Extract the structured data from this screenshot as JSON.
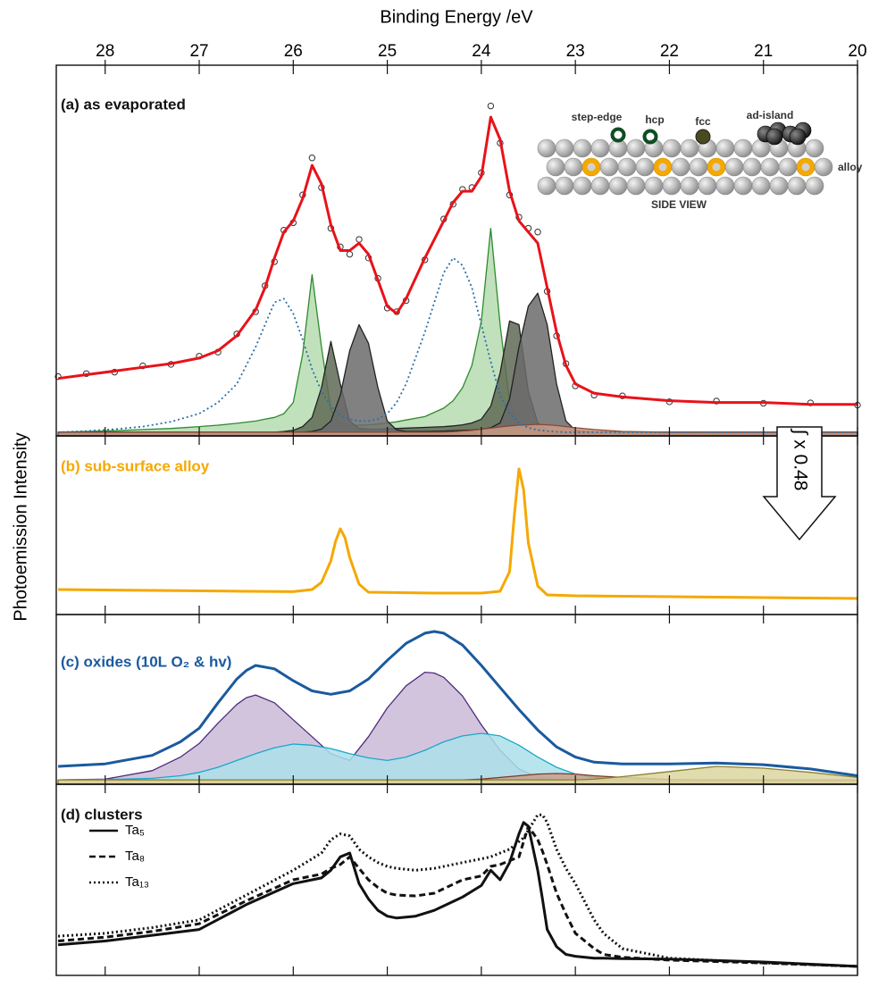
{
  "chart_data": [
    {
      "type": "line",
      "xlabel": "Binding Energy /eV",
      "ylabel": "Photoemission Intensity",
      "label": "(a) as evaporated",
      "label_color": "#111111",
      "xlim": [
        28.52,
        20.0
      ],
      "ylim": [
        0,
        100
      ],
      "xticks": [
        28,
        27,
        26,
        25,
        24,
        23,
        22,
        21,
        20
      ],
      "inset_labels": [
        "step-edge",
        "hcp",
        "fcc",
        "ad-island",
        "alloy",
        "SIDE VIEW"
      ],
      "annotation": "∫ x 0.48",
      "x": [
        28.5,
        28.2,
        27.9,
        27.6,
        27.3,
        27.0,
        26.8,
        26.6,
        26.4,
        26.3,
        26.2,
        26.1,
        26.0,
        25.9,
        25.8,
        25.7,
        25.6,
        25.5,
        25.4,
        25.3,
        25.2,
        25.1,
        25.0,
        24.9,
        24.8,
        24.6,
        24.4,
        24.3,
        24.2,
        24.1,
        24.0,
        23.9,
        23.8,
        23.7,
        23.6,
        23.5,
        23.4,
        23.3,
        23.2,
        23.1,
        23.0,
        22.8,
        22.5,
        22.0,
        21.5,
        21.0,
        20.5,
        20.0
      ],
      "series": [
        {
          "color": "#2e8b2e",
          "fill": "#b5dcb0",
          "values": [
            1,
            1.2,
            1.4,
            1.7,
            2,
            2.5,
            2.9,
            3.4,
            4,
            4.5,
            5,
            6,
            9,
            22,
            43.5,
            24,
            7,
            3.2,
            2.8,
            2.9,
            3,
            3.2,
            3.5,
            3.8,
            4.3,
            5.2,
            7.5,
            9.5,
            13,
            19,
            31,
            56,
            30,
            9,
            3,
            1.6,
            1.2,
            1,
            1,
            1,
            1,
            1,
            1,
            1,
            1,
            1,
            1,
            1
          ]
        },
        {
          "color": "#222222",
          "fill": "#5f6a55",
          "values": [
            1,
            1,
            1,
            1,
            1,
            1,
            1,
            1,
            1,
            1,
            1,
            1.2,
            1.5,
            2.5,
            5,
            13,
            25.5,
            14,
            4,
            2,
            1.8,
            1.8,
            1.9,
            2,
            2.1,
            2.3,
            2.5,
            2.7,
            3,
            3.5,
            4.5,
            8,
            17,
            31,
            30,
            12,
            3.5,
            1.6,
            1.2,
            1,
            1,
            1,
            1,
            1,
            1,
            1,
            1,
            1
          ]
        },
        {
          "color": "#222222",
          "fill": "#6b6b6b",
          "values": [
            1,
            1,
            1,
            1,
            1,
            1,
            1,
            1,
            1,
            1,
            1,
            1,
            1,
            1,
            1.2,
            1.8,
            4,
            11,
            23,
            30,
            25,
            13,
            4,
            1.6,
            1.2,
            1.2,
            1.3,
            1.4,
            1.5,
            1.6,
            1.8,
            2.2,
            3.5,
            10,
            24,
            35,
            38.5,
            30,
            14,
            4,
            1.5,
            1.1,
            1,
            1,
            1,
            1,
            1,
            1
          ]
        },
        {
          "color": "#8a4a36",
          "fill": "#c99a85",
          "values": [
            1,
            1,
            1,
            1,
            1,
            1,
            1,
            1,
            1,
            1,
            1,
            1,
            1,
            1,
            1,
            1,
            1,
            1,
            1,
            1,
            1,
            1,
            1,
            1,
            1,
            1,
            1,
            1.1,
            1.3,
            1.5,
            1.8,
            2.1,
            2.4,
            2.7,
            2.9,
            3,
            3.1,
            3,
            2.8,
            2.5,
            2.2,
            1.7,
            1.2,
            1,
            1,
            1,
            1,
            1
          ]
        },
        {
          "color": "#2a6fa8",
          "dash": "dotted",
          "values": [
            1,
            1.3,
            1.8,
            2.5,
            3.8,
            6,
            9,
            14,
            24,
            30,
            36,
            37,
            33,
            26,
            18,
            12,
            8,
            5.5,
            4.5,
            4,
            4,
            4.5,
            6,
            9,
            14,
            28,
            44,
            48,
            46,
            40,
            30,
            20,
            11,
            6,
            3.5,
            2.2,
            1.6,
            1.3,
            1.1,
            1,
            1,
            1,
            1,
            1,
            1,
            1,
            1,
            1
          ]
        },
        {
          "color": "#333333",
          "marker": "circle",
          "values": [
            16,
            16.8,
            17.2,
            18.9,
            19.3,
            21.5,
            22.6,
            27.5,
            33.5,
            40.5,
            47,
            55.5,
            57.5,
            65,
            75,
            67,
            56,
            51,
            49,
            53,
            48,
            42.5,
            34.5,
            33.5,
            36.5,
            47.5,
            58.5,
            62.5,
            66.5,
            67,
            71,
            89,
            79,
            65,
            59,
            56,
            55,
            39,
            27,
            19.5,
            13.5,
            11,
            10.8,
            9.2,
            9.4,
            8.8,
            8.9,
            8.3
          ]
        },
        {
          "color": "#e8121a",
          "values": [
            15.5,
            16.5,
            17.5,
            18.5,
            19.5,
            21,
            23,
            27,
            34,
            40,
            48,
            55,
            58,
            64,
            73,
            68,
            57,
            50,
            50,
            52,
            49,
            42,
            35,
            33,
            37,
            48,
            58,
            63,
            66,
            66,
            70,
            86,
            80,
            66,
            58,
            55,
            52,
            40,
            28,
            19,
            14,
            11.5,
            10.5,
            9.5,
            9,
            9,
            8.5,
            8.5
          ]
        }
      ]
    },
    {
      "type": "line",
      "label": "(b) sub-surface alloy",
      "label_color": "#f5a800",
      "xlim": [
        28.52,
        20.0
      ],
      "ylim": [
        0,
        100
      ],
      "x": [
        28.5,
        27.5,
        26.5,
        26.0,
        25.8,
        25.7,
        25.6,
        25.55,
        25.5,
        25.45,
        25.4,
        25.3,
        25.2,
        24.5,
        24.0,
        23.8,
        23.7,
        23.65,
        23.6,
        23.55,
        23.5,
        23.4,
        23.3,
        23.0,
        22.0,
        21.0,
        20.0
      ],
      "series": [
        {
          "color": "#f5a800",
          "values": [
            14,
            13.5,
            13,
            12.8,
            14,
            18,
            30,
            41,
            48,
            43,
            32,
            17,
            12.5,
            12,
            12,
            13,
            24,
            55,
            81.5,
            70,
            40,
            16,
            11,
            10.5,
            10,
            9.5,
            9
          ]
        }
      ]
    },
    {
      "type": "line",
      "label": "(c) oxides (10L O₂ & hv)",
      "label_color": "#1a5a9e",
      "xlim": [
        28.52,
        20.0
      ],
      "ylim": [
        0,
        100
      ],
      "x": [
        28.5,
        28.0,
        27.5,
        27.2,
        27.0,
        26.8,
        26.6,
        26.5,
        26.4,
        26.2,
        26.0,
        25.8,
        25.6,
        25.4,
        25.2,
        25.0,
        24.8,
        24.6,
        24.5,
        24.4,
        24.2,
        24.0,
        23.8,
        23.6,
        23.4,
        23.2,
        23.0,
        22.8,
        22.5,
        22.0,
        21.5,
        21.0,
        20.5,
        20.0
      ],
      "series": [
        {
          "color": "#4b2a7a",
          "fill": "#cbbad8",
          "values": [
            2.6,
            3,
            8,
            16,
            24,
            36,
            47,
            51,
            52.6,
            48,
            38,
            28,
            18,
            14,
            28,
            45,
            58,
            66,
            65.5,
            63,
            52,
            35,
            20,
            9,
            4,
            2.6,
            2.6,
            2.6,
            2.6,
            2.6,
            2.6,
            2.6,
            2.6,
            2.6
          ]
        },
        {
          "color": "#1aa8c8",
          "fill": "#ace0ea",
          "values": [
            2.6,
            2.8,
            3.5,
            5,
            7,
            10,
            14,
            16,
            18,
            21.5,
            23.7,
            23,
            21,
            18,
            15.5,
            14,
            16,
            20,
            22.5,
            25,
            28.5,
            30,
            28.5,
            23,
            16,
            10,
            6,
            4,
            2.6,
            2.2,
            2,
            2,
            2,
            2
          ]
        },
        {
          "color": "#7a3a2a",
          "fill": "#c8a08a",
          "values": [
            2.6,
            2.6,
            2.6,
            2.6,
            2.6,
            2.6,
            2.6,
            2.6,
            2.6,
            2.6,
            2.6,
            2.6,
            2.6,
            2.6,
            2.6,
            2.6,
            2.6,
            2.6,
            2.6,
            2.6,
            2.6,
            3,
            4,
            5,
            6,
            6.3,
            6,
            5,
            4,
            2.8,
            2.4,
            2.4,
            2.4,
            2.4
          ]
        },
        {
          "color": "#8a8030",
          "fill": "#dcd6a0",
          "values": [
            2.6,
            2.6,
            2.6,
            2.6,
            2.6,
            2.6,
            2.6,
            2.6,
            2.6,
            2.6,
            2.6,
            2.6,
            2.6,
            2.6,
            2.6,
            2.6,
            2.6,
            2.6,
            2.6,
            2.6,
            2.6,
            2.6,
            2.6,
            2.6,
            2.6,
            2.6,
            2.6,
            3,
            4.5,
            7.5,
            10.5,
            9.5,
            7,
            4
          ]
        },
        {
          "color": "#1a5a9e",
          "values": [
            10.5,
            12,
            17,
            25,
            33,
            48,
            62,
            67,
            70,
            68,
            61,
            55,
            53,
            55,
            62,
            73,
            83,
            89,
            90,
            89,
            82,
            70,
            57,
            44,
            32,
            22,
            16,
            13,
            12,
            12,
            12.5,
            11.5,
            9,
            5
          ]
        }
      ]
    },
    {
      "type": "line",
      "label": "(d) clusters",
      "label_color": "#111111",
      "xlim": [
        28.52,
        20.0
      ],
      "ylim": [
        0,
        100
      ],
      "legend": "upper left",
      "x": [
        28.5,
        28.0,
        27.5,
        27.0,
        26.5,
        26.0,
        25.7,
        25.6,
        25.5,
        25.4,
        25.3,
        25.2,
        25.1,
        25.0,
        24.9,
        24.7,
        24.5,
        24.2,
        24.0,
        23.9,
        23.8,
        23.7,
        23.6,
        23.55,
        23.5,
        23.4,
        23.35,
        23.3,
        23.2,
        23.1,
        23.0,
        22.8,
        22.7,
        22.5,
        22.0,
        21.0,
        20.0
      ],
      "series": [
        {
          "name": "Ta₅",
          "color": "#111111",
          "values": [
            16,
            18,
            21,
            24,
            37,
            48,
            51,
            55,
            62,
            64,
            48,
            40,
            34,
            31,
            30,
            31,
            34,
            41,
            47,
            55,
            50,
            59,
            74,
            80,
            78,
            55,
            40,
            24,
            15,
            11,
            10,
            9,
            9,
            8.8,
            8.5,
            7,
            4.7
          ]
        },
        {
          "name": "Ta₈",
          "color": "#111111",
          "dash": "dashed",
          "values": [
            18,
            20,
            23,
            27,
            39,
            50,
            53,
            56,
            58,
            62,
            56,
            50,
            46,
            43,
            42,
            41.6,
            43,
            50,
            52,
            57,
            58,
            60,
            62,
            70,
            78,
            71,
            65,
            58,
            43,
            32,
            22,
            14,
            11,
            9.5,
            8,
            6.5,
            4.7
          ]
        },
        {
          "name": "Ta₁₃",
          "color": "#111111",
          "dash": "dotted",
          "values": [
            20.5,
            22,
            25,
            29,
            42,
            55,
            64,
            71,
            74,
            73,
            66,
            62,
            59,
            57,
            56,
            55,
            56,
            59,
            61,
            62,
            64,
            66,
            70,
            72,
            76,
            84,
            84,
            80,
            66,
            56,
            48,
            29,
            22,
            14,
            9,
            6.5,
            4.7
          ]
        }
      ]
    }
  ]
}
